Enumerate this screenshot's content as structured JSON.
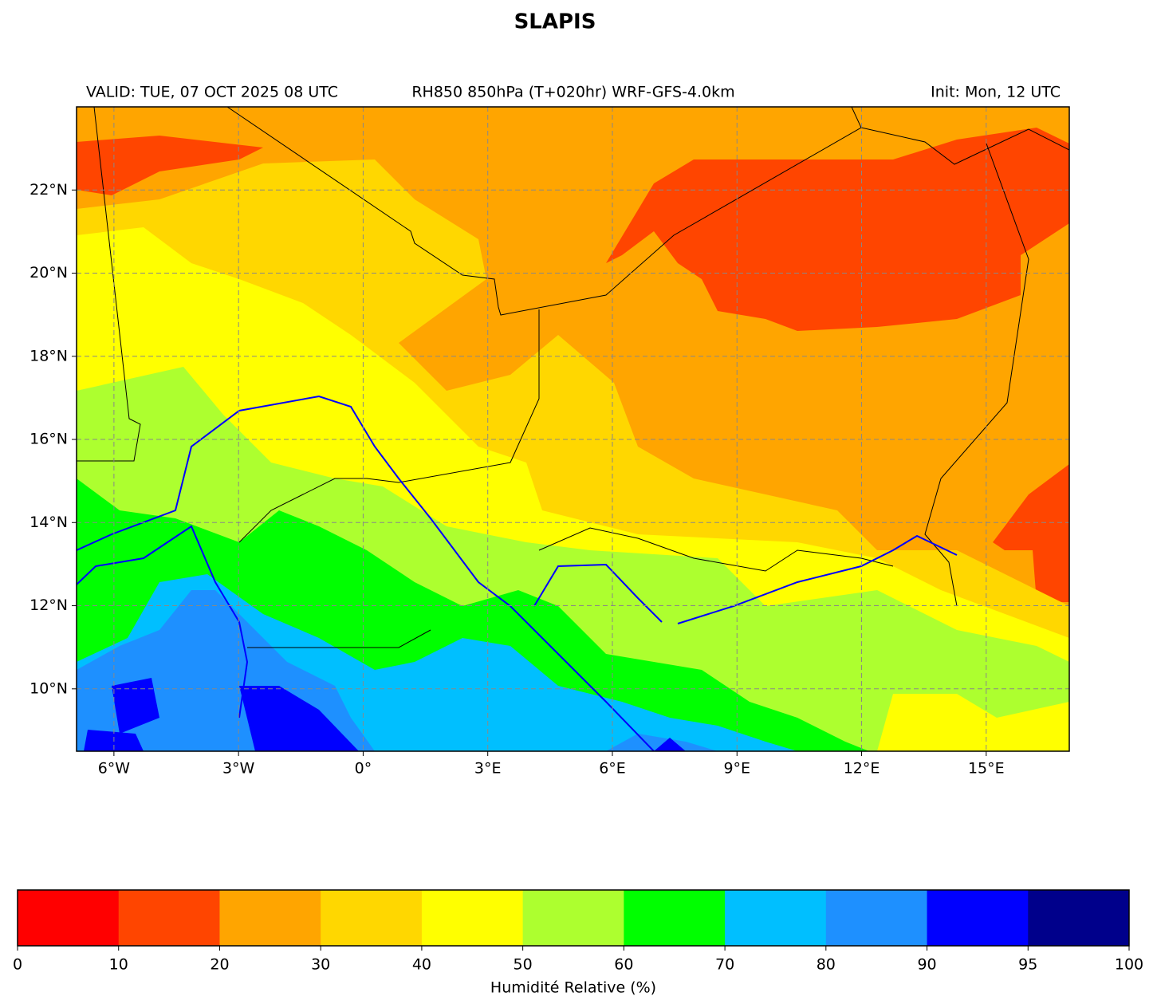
{
  "title": "SLAPIS",
  "subtitle_left": "VALID: TUE, 07 OCT 2025 08 UTC",
  "subtitle_center": "RH850 850hPa (T+020hr) WRF-GFS-4.0km",
  "subtitle_right": "Init: Mon, 12 UTC",
  "map": {
    "xlim": [
      -6.9,
      17
    ],
    "ylim": [
      8.5,
      24
    ],
    "grid": true,
    "xticks": [
      {
        "value": -6,
        "label": "6°W"
      },
      {
        "value": -3,
        "label": "3°W"
      },
      {
        "value": 0,
        "label": "0°"
      },
      {
        "value": 3,
        "label": "3°E"
      },
      {
        "value": 6,
        "label": "6°E"
      },
      {
        "value": 9,
        "label": "9°E"
      },
      {
        "value": 12,
        "label": "12°E"
      },
      {
        "value": 15,
        "label": "15°E"
      }
    ],
    "yticks": [
      {
        "value": 10,
        "label": "10°N"
      },
      {
        "value": 12,
        "label": "12°N"
      },
      {
        "value": 14,
        "label": "14°N"
      },
      {
        "value": 16,
        "label": "16°N"
      },
      {
        "value": 18,
        "label": "18°N"
      },
      {
        "value": 20,
        "label": "20°N"
      },
      {
        "value": 22,
        "label": "22°N"
      }
    ]
  },
  "colorbar": {
    "label": "Humidité Relative (%)",
    "ticks": [
      0,
      10,
      20,
      30,
      40,
      50,
      60,
      70,
      80,
      90,
      95,
      100
    ],
    "colors": [
      "#ff0000",
      "#ff4500",
      "#ffa500",
      "#ffd700",
      "#ffff00",
      "#adff2f",
      "#00ff00",
      "#00bfff",
      "#1e90ff",
      "#0000ff",
      "#00008b"
    ]
  }
}
